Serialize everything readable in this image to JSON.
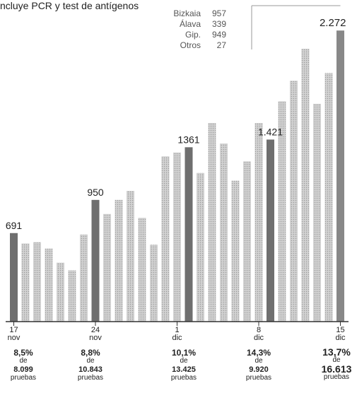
{
  "subtitle": "ncluye PCR y test de antígenos",
  "colors": {
    "bar": "#c8c8c8",
    "highlight": "#6f6f6f",
    "last": "#888888",
    "text": "#222222",
    "axis": "#333333"
  },
  "breakdown": [
    {
      "name": "Bizkaia",
      "value": "957"
    },
    {
      "name": "Álava",
      "value": "339"
    },
    {
      "name": "Gip.",
      "value": "949"
    },
    {
      "name": "Otros",
      "value": "27"
    }
  ],
  "stats": [
    {
      "pct": "8,5%",
      "de": "de",
      "tests": "8.099",
      "label": "pruebas"
    },
    {
      "pct": "8,8%",
      "de": "de",
      "tests": "10.843",
      "label": "pruebas"
    },
    {
      "pct": "10,1%",
      "de": "de",
      "tests": "13.425",
      "label": "pruebas"
    },
    {
      "pct": "14,3%",
      "de": "de",
      "tests": "9.920",
      "label": "pruebas"
    },
    {
      "pct": "13,7%",
      "de": "de",
      "tests": "16.613",
      "label": "pruebas"
    }
  ],
  "chart_data": {
    "type": "bar",
    "categories": [
      "17 nov",
      "18 nov",
      "19 nov",
      "20 nov",
      "21 nov",
      "22 nov",
      "23 nov",
      "24 nov",
      "25 nov",
      "26 nov",
      "27 nov",
      "28 nov",
      "29 nov",
      "30 nov",
      "1 dic",
      "2 dic",
      "3 dic",
      "4 dic",
      "5 dic",
      "6 dic",
      "7 dic",
      "8 dic",
      "9 dic",
      "10 dic",
      "11 dic",
      "12 dic",
      "13 dic",
      "14 dic",
      "15 dic"
    ],
    "values": [
      691,
      610,
      620,
      570,
      460,
      400,
      680,
      950,
      840,
      950,
      1020,
      810,
      600,
      1290,
      1320,
      1361,
      1160,
      1550,
      1390,
      1100,
      1250,
      1550,
      1421,
      1720,
      1880,
      2130,
      1700,
      1940,
      2272
    ],
    "value_labels": [
      {
        "index": 0,
        "text": "691"
      },
      {
        "index": 7,
        "text": "950"
      },
      {
        "index": 15,
        "text": "1361"
      },
      {
        "index": 22,
        "text": "1.421"
      },
      {
        "index": 28,
        "text": "2.272"
      }
    ],
    "highlight_indices": [
      0,
      7,
      15,
      22,
      28
    ],
    "x_ticks": [
      {
        "index": 0,
        "day": "17",
        "month": "nov"
      },
      {
        "index": 7,
        "day": "24",
        "month": "nov"
      },
      {
        "index": 14,
        "day": "1",
        "month": "dic"
      },
      {
        "index": 21,
        "day": "8",
        "month": "dic"
      },
      {
        "index": 28,
        "day": "15",
        "month": "dic"
      }
    ],
    "ylim": [
      0,
      2400
    ],
    "grid": false
  }
}
